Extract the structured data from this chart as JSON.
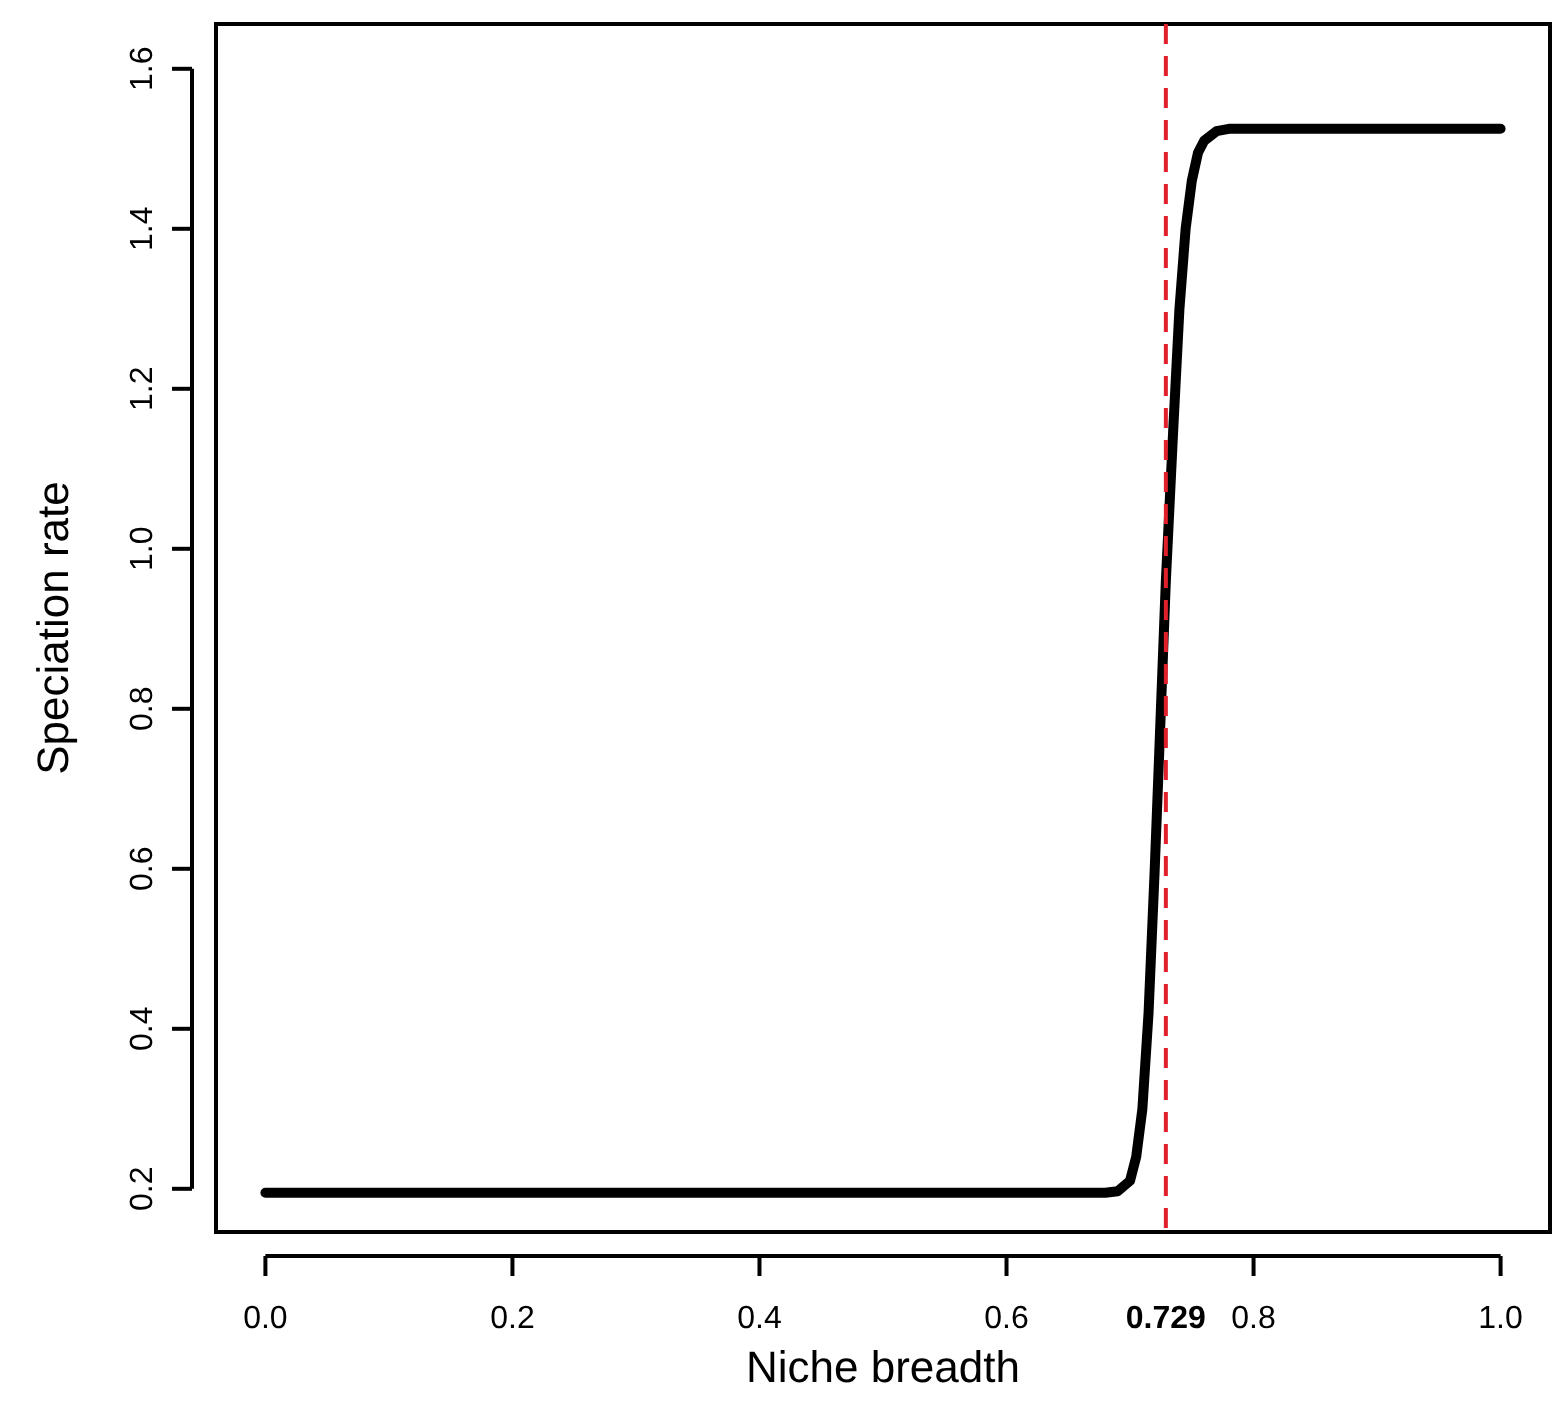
{
  "chart_data": {
    "type": "line",
    "xlabel": "Niche breadth",
    "ylabel": "Speciation rate",
    "xlim": [
      -0.04,
      1.04
    ],
    "ylim": [
      0.146,
      1.656
    ],
    "xticks": [
      {
        "value": 0,
        "label": "0.0"
      },
      {
        "value": 0.2,
        "label": "0.2"
      },
      {
        "value": 0.4,
        "label": "0.4"
      },
      {
        "value": 0.6,
        "label": "0.6"
      },
      {
        "value": 0.8,
        "label": "0.8"
      },
      {
        "value": 1,
        "label": "1.0"
      }
    ],
    "yticks": [
      {
        "value": 0.2,
        "label": "0.2"
      },
      {
        "value": 0.4,
        "label": "0.4"
      },
      {
        "value": 0.6,
        "label": "0.6"
      },
      {
        "value": 0.8,
        "label": "0.8"
      },
      {
        "value": 1,
        "label": "1.0"
      },
      {
        "value": 1.2,
        "label": "1.2"
      },
      {
        "value": 1.4,
        "label": "1.4"
      },
      {
        "value": 1.6,
        "label": "1.6"
      }
    ],
    "x": [
      0,
      0.68,
      0.69,
      0.7,
      0.705,
      0.71,
      0.715,
      0.72,
      0.725,
      0.729,
      0.735,
      0.74,
      0.745,
      0.75,
      0.755,
      0.76,
      0.77,
      0.78,
      1
    ],
    "series": [
      {
        "color": "#000000",
        "values": [
          0.195,
          0.195,
          0.197,
          0.21,
          0.24,
          0.3,
          0.42,
          0.6,
          0.8,
          0.96,
          1.15,
          1.3,
          1.4,
          1.46,
          1.495,
          1.51,
          1.522,
          1.525,
          1.525
        ]
      }
    ],
    "ref_lines": [
      {
        "axis": "x",
        "value": 0.729,
        "label": "0.729",
        "color": "#e0202a",
        "line_style": "dashed"
      }
    ],
    "grid": false,
    "marker": "none",
    "line_style": "solid"
  }
}
